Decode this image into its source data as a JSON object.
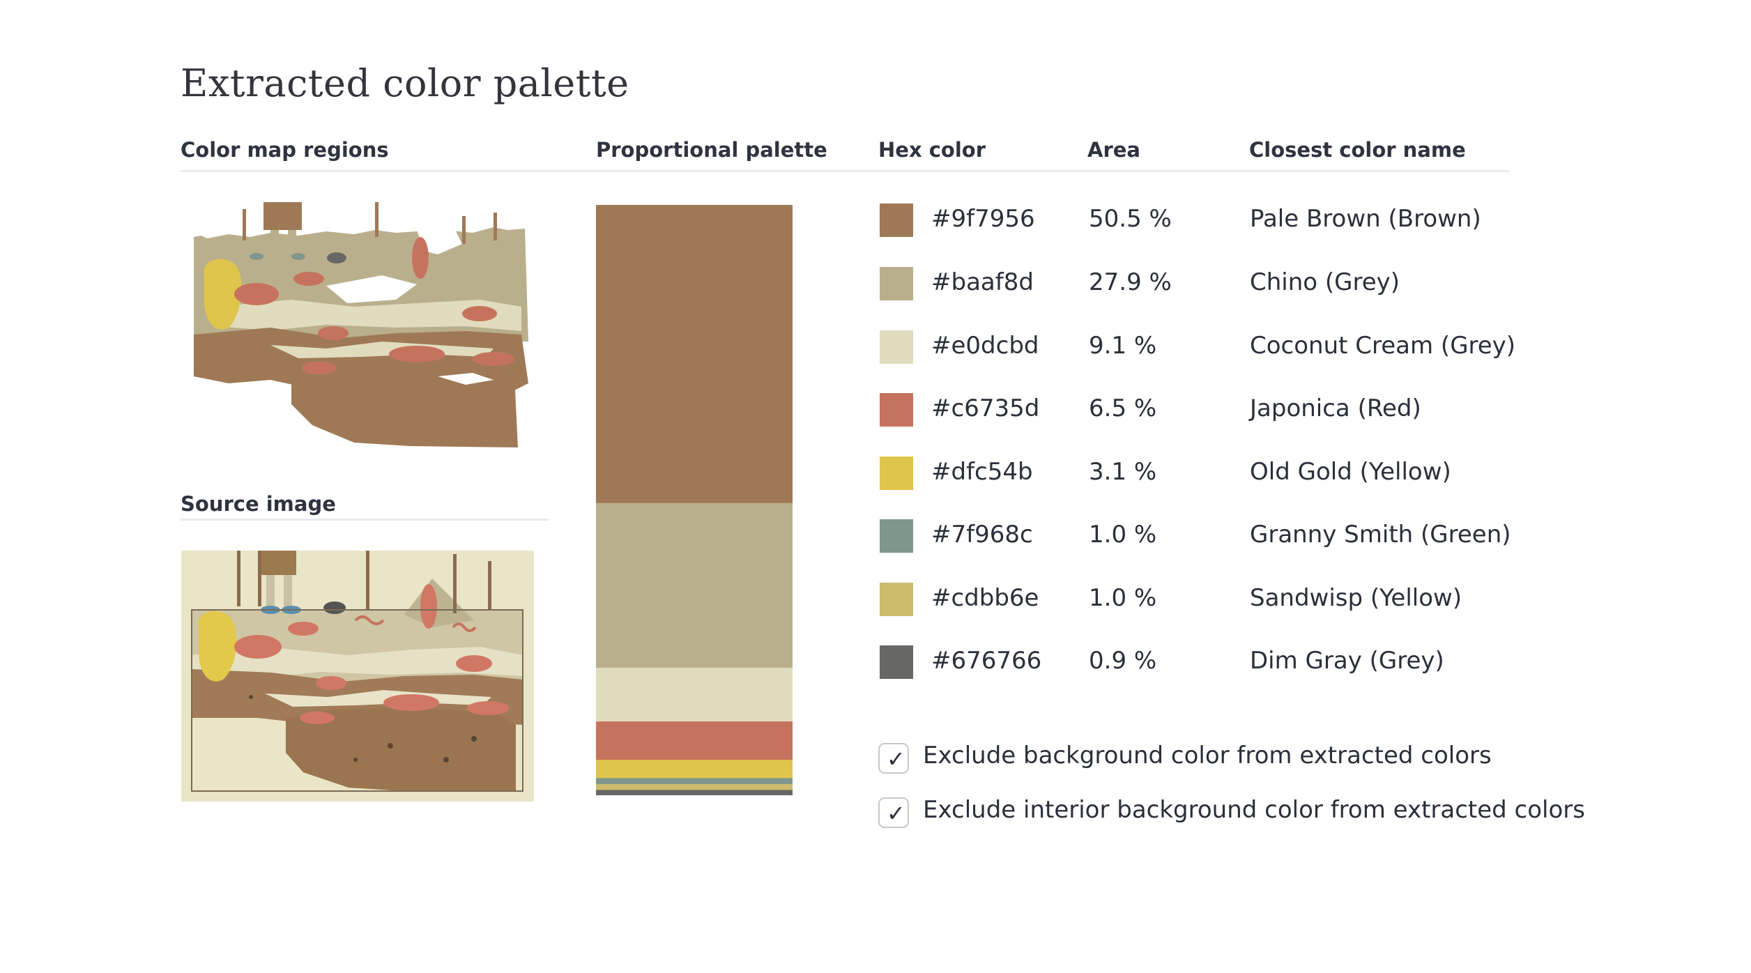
{
  "page": {
    "title": "Extracted color palette"
  },
  "headers": {
    "color_map": "Color map regions",
    "proportional": "Proportional palette",
    "hex": "Hex color",
    "area": "Area",
    "name": "Closest color name",
    "source": "Source image"
  },
  "colors": [
    {
      "hex": "#9f7956",
      "area_label": "50.5 %",
      "area": 50.5,
      "name": "Pale Brown (Brown)"
    },
    {
      "hex": "#baaf8d",
      "area_label": "27.9 %",
      "area": 27.9,
      "name": "Chino (Grey)"
    },
    {
      "hex": "#e0dcbd",
      "area_label": "9.1 %",
      "area": 9.1,
      "name": "Coconut Cream (Grey)"
    },
    {
      "hex": "#c6735d",
      "area_label": "6.5 %",
      "area": 6.5,
      "name": "Japonica (Red)"
    },
    {
      "hex": "#dfc54b",
      "area_label": "3.1 %",
      "area": 3.1,
      "name": "Old Gold (Yellow)"
    },
    {
      "hex": "#7f968c",
      "area_label": "1.0 %",
      "area": 1.0,
      "name": "Granny Smith (Green)"
    },
    {
      "hex": "#cdbb6e",
      "area_label": "1.0 %",
      "area": 1.0,
      "name": "Sandwisp (Yellow)"
    },
    {
      "hex": "#676766",
      "area_label": "0.9 %",
      "area": 0.9,
      "name": "Dim Gray (Grey)"
    }
  ],
  "options": [
    {
      "label": "Exclude background color from extracted colors",
      "checked": true
    },
    {
      "label": "Exclude interior background color from extracted colors",
      "checked": true
    }
  ]
}
